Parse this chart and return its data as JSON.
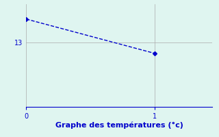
{
  "x": [
    0,
    1
  ],
  "y": [
    14.1,
    12.5
  ],
  "line_color": "#0000cc",
  "line_style": "--",
  "marker": "D",
  "marker_size": 3,
  "background_color": "#dff5f0",
  "xlabel": "Graphe des températures (°c)",
  "xlabel_color": "#0000cc",
  "xlabel_fontsize": 8,
  "grid_color": "#aaaaaa",
  "tick_color": "#0000cc",
  "ytick_labels": [
    "13"
  ],
  "ytick_values": [
    13
  ],
  "xtick_values": [
    0,
    1
  ],
  "xlim": [
    0,
    1.45
  ],
  "ylim": [
    10.0,
    14.8
  ]
}
